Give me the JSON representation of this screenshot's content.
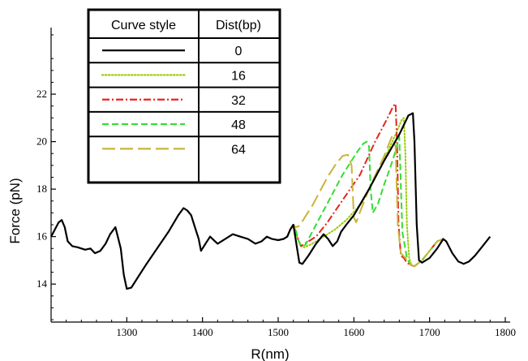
{
  "chart_data": {
    "type": "line",
    "xlabel": "R(nm)",
    "ylabel": "Force (pN)",
    "xlim": [
      1200,
      1800
    ],
    "ylim": [
      12.4,
      24.6
    ],
    "x_ticks": [
      1300,
      1400,
      1500,
      1600,
      1700,
      1800
    ],
    "y_ticks": [
      14,
      16,
      18,
      20,
      22
    ],
    "grid": false,
    "legend_placement": "top-left",
    "legend": {
      "header_style": "Curve style",
      "header_dist": "Dist(bp)"
    },
    "series": [
      {
        "name": "0",
        "color": "#000000",
        "dash": "solid",
        "x": [
          1200,
          1205,
          1210,
          1214,
          1218,
          1222,
          1228,
          1235,
          1245,
          1252,
          1258,
          1265,
          1272,
          1278,
          1285,
          1292,
          1296,
          1300,
          1306,
          1315,
          1325,
          1340,
          1355,
          1368,
          1375,
          1380,
          1385,
          1390,
          1395,
          1398,
          1402,
          1410,
          1420,
          1430,
          1440,
          1450,
          1460,
          1470,
          1478,
          1485,
          1492,
          1500,
          1507,
          1512,
          1516,
          1520,
          1525,
          1528,
          1532,
          1540,
          1550,
          1560,
          1566,
          1572,
          1578,
          1583,
          1590,
          1600,
          1620,
          1640,
          1660,
          1672,
          1678,
          1680,
          1683,
          1686,
          1690,
          1700,
          1710,
          1718,
          1722,
          1730,
          1738,
          1745,
          1752,
          1760,
          1770,
          1780
        ],
        "y": [
          16.0,
          16.3,
          16.6,
          16.7,
          16.4,
          15.8,
          15.6,
          15.55,
          15.45,
          15.5,
          15.3,
          15.4,
          15.7,
          16.1,
          16.4,
          15.5,
          14.4,
          13.8,
          13.85,
          14.3,
          14.8,
          15.5,
          16.2,
          16.9,
          17.2,
          17.1,
          16.9,
          16.4,
          15.9,
          15.4,
          15.6,
          16.0,
          15.7,
          15.9,
          16.1,
          16.0,
          15.9,
          15.7,
          15.8,
          16.0,
          15.9,
          15.85,
          15.9,
          16.0,
          16.3,
          16.5,
          15.5,
          14.9,
          14.85,
          15.2,
          15.7,
          16.1,
          15.9,
          15.6,
          15.8,
          16.2,
          16.5,
          16.9,
          18.0,
          19.2,
          20.3,
          21.1,
          21.2,
          20.0,
          16.5,
          15.0,
          14.9,
          15.1,
          15.5,
          15.9,
          15.8,
          15.3,
          14.95,
          14.85,
          14.95,
          15.2,
          15.6,
          16.0
        ]
      },
      {
        "name": "16",
        "color": "#99cc00",
        "dash": "dotted",
        "x": [
          1500,
          1507,
          1512,
          1516,
          1520,
          1525,
          1530,
          1535,
          1545,
          1560,
          1575,
          1590,
          1610,
          1625,
          1635,
          1645,
          1655,
          1663,
          1666,
          1668,
          1670,
          1673,
          1676,
          1680,
          1690,
          1700,
          1710,
          1718
        ],
        "y": [
          15.85,
          15.9,
          16.0,
          16.3,
          16.5,
          16.0,
          15.6,
          15.55,
          15.7,
          16.0,
          16.3,
          16.7,
          17.4,
          18.3,
          18.9,
          19.6,
          20.3,
          20.9,
          21.0,
          19.5,
          16.5,
          15.1,
          14.8,
          14.75,
          15.0,
          15.4,
          15.8,
          15.9
        ]
      },
      {
        "name": "32",
        "color": "#e8231f",
        "dash": "dashdot",
        "x": [
          1500,
          1507,
          1512,
          1516,
          1520,
          1525,
          1530,
          1540,
          1550,
          1565,
          1580,
          1595,
          1608,
          1618,
          1628,
          1638,
          1646,
          1652,
          1655,
          1657,
          1659,
          1662,
          1666,
          1670,
          1675,
          1680,
          1690,
          1700,
          1710,
          1718
        ],
        "y": [
          15.85,
          15.9,
          16.0,
          16.3,
          16.5,
          16.0,
          15.6,
          15.8,
          16.0,
          16.6,
          17.3,
          18.0,
          18.6,
          19.3,
          20.0,
          20.6,
          21.1,
          21.5,
          21.6,
          20.0,
          16.5,
          15.2,
          15.1,
          14.9,
          14.8,
          14.75,
          15.0,
          15.4,
          15.8,
          15.9
        ]
      },
      {
        "name": "48",
        "color": "#33dd33",
        "dash": "dashed",
        "x": [
          1500,
          1507,
          1512,
          1516,
          1520,
          1523,
          1527,
          1531,
          1536,
          1545,
          1555,
          1565,
          1575,
          1585,
          1595,
          1605,
          1612,
          1617,
          1620,
          1622,
          1625,
          1632,
          1640,
          1648,
          1655,
          1660,
          1664,
          1670,
          1675,
          1680,
          1690,
          1700,
          1710,
          1718
        ],
        "y": [
          15.85,
          15.9,
          16.0,
          16.3,
          16.5,
          16.3,
          15.8,
          15.6,
          15.65,
          16.2,
          16.8,
          17.4,
          18.0,
          18.6,
          19.1,
          19.6,
          19.9,
          20.0,
          19.8,
          18.0,
          17.0,
          17.4,
          18.2,
          18.9,
          19.6,
          20.2,
          16.2,
          15.1,
          14.8,
          14.75,
          15.0,
          15.4,
          15.8,
          15.9
        ]
      },
      {
        "name": "64",
        "color": "#c8b43a",
        "dash": "longdash",
        "x": [
          1500,
          1507,
          1512,
          1516,
          1520,
          1523,
          1528,
          1535,
          1545,
          1555,
          1565,
          1575,
          1585,
          1592,
          1597,
          1600,
          1603,
          1610,
          1620,
          1630,
          1640,
          1650,
          1655,
          1658,
          1662,
          1668,
          1675,
          1680,
          1690,
          1700,
          1710,
          1718
        ],
        "y": [
          15.85,
          15.9,
          16.0,
          16.3,
          16.5,
          16.4,
          16.45,
          16.8,
          17.3,
          17.9,
          18.5,
          19.0,
          19.4,
          19.45,
          19.0,
          16.8,
          16.6,
          17.2,
          18.0,
          18.7,
          19.4,
          20.2,
          19.8,
          16.5,
          15.3,
          15.1,
          14.8,
          14.75,
          15.0,
          15.4,
          15.8,
          15.9
        ]
      }
    ]
  }
}
